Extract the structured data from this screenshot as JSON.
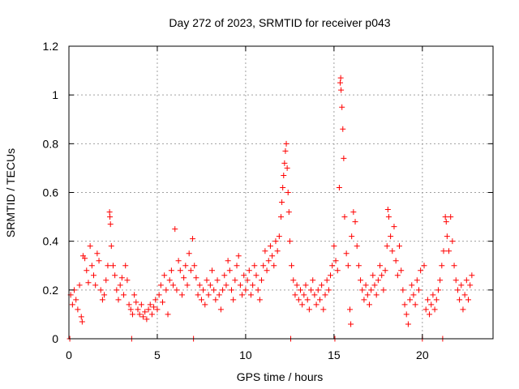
{
  "chart_data": {
    "type": "scatter",
    "title": "Day 272 of 2023, SRMTID for receiver p043",
    "xlabel": "GPS time / hours",
    "ylabel": "SRMTID / TECUs",
    "xlim": [
      0,
      24
    ],
    "ylim": [
      0,
      1.2
    ],
    "xticks": [
      0,
      5,
      10,
      15,
      20
    ],
    "xtick_labels": [
      "0",
      "5",
      "10",
      "15",
      "20"
    ],
    "yticks": [
      0,
      0.2,
      0.4,
      0.6,
      0.8,
      1,
      1.2
    ],
    "ytick_labels": [
      "0",
      "0.2",
      "0.4",
      "0.6",
      "0.8",
      "1",
      "1.2"
    ],
    "grid": true,
    "marker": "plus",
    "series": [
      {
        "name": "SRMTID",
        "color": "#ff0000",
        "points": [
          [
            0.05,
            0.0
          ],
          [
            0.1,
            0.18
          ],
          [
            0.2,
            0.14
          ],
          [
            0.3,
            0.2
          ],
          [
            0.4,
            0.16
          ],
          [
            0.5,
            0.12
          ],
          [
            0.6,
            0.22
          ],
          [
            0.7,
            0.09
          ],
          [
            0.75,
            0.07
          ],
          [
            0.8,
            0.34
          ],
          [
            0.9,
            0.33
          ],
          [
            1.0,
            0.28
          ],
          [
            1.1,
            0.23
          ],
          [
            1.2,
            0.38
          ],
          [
            1.3,
            0.3
          ],
          [
            1.4,
            0.26
          ],
          [
            1.5,
            0.22
          ],
          [
            1.6,
            0.35
          ],
          [
            1.7,
            0.32
          ],
          [
            1.8,
            0.2
          ],
          [
            1.9,
            0.16
          ],
          [
            2.0,
            0.18
          ],
          [
            2.1,
            0.24
          ],
          [
            2.2,
            0.3
          ],
          [
            2.3,
            0.52
          ],
          [
            2.32,
            0.5
          ],
          [
            2.35,
            0.47
          ],
          [
            2.4,
            0.38
          ],
          [
            2.5,
            0.3
          ],
          [
            2.6,
            0.26
          ],
          [
            2.7,
            0.2
          ],
          [
            2.8,
            0.16
          ],
          [
            2.9,
            0.22
          ],
          [
            3.0,
            0.25
          ],
          [
            3.1,
            0.18
          ],
          [
            3.2,
            0.3
          ],
          [
            3.3,
            0.24
          ],
          [
            3.4,
            0.14
          ],
          [
            3.5,
            0.12
          ],
          [
            3.55,
            0.0
          ],
          [
            3.6,
            0.1
          ],
          [
            3.7,
            0.18
          ],
          [
            3.8,
            0.15
          ],
          [
            3.9,
            0.12
          ],
          [
            4.0,
            0.1
          ],
          [
            4.1,
            0.14
          ],
          [
            4.2,
            0.09
          ],
          [
            4.3,
            0.11
          ],
          [
            4.4,
            0.08
          ],
          [
            4.5,
            0.12
          ],
          [
            4.6,
            0.14
          ],
          [
            4.7,
            0.1
          ],
          [
            4.8,
            0.13
          ],
          [
            4.9,
            0.16
          ],
          [
            5.0,
            0.12
          ],
          [
            5.1,
            0.18
          ],
          [
            5.2,
            0.22
          ],
          [
            5.3,
            0.15
          ],
          [
            5.4,
            0.26
          ],
          [
            5.5,
            0.2
          ],
          [
            5.6,
            0.1
          ],
          [
            5.7,
            0.24
          ],
          [
            5.8,
            0.28
          ],
          [
            5.9,
            0.22
          ],
          [
            6.0,
            0.45
          ],
          [
            6.1,
            0.2
          ],
          [
            6.2,
            0.32
          ],
          [
            6.3,
            0.28
          ],
          [
            6.4,
            0.18
          ],
          [
            6.5,
            0.25
          ],
          [
            6.6,
            0.3
          ],
          [
            6.7,
            0.22
          ],
          [
            6.8,
            0.35
          ],
          [
            6.9,
            0.28
          ],
          [
            7.0,
            0.41
          ],
          [
            7.05,
            0.0
          ],
          [
            7.1,
            0.3
          ],
          [
            7.2,
            0.25
          ],
          [
            7.3,
            0.18
          ],
          [
            7.4,
            0.22
          ],
          [
            7.5,
            0.16
          ],
          [
            7.6,
            0.2
          ],
          [
            7.7,
            0.14
          ],
          [
            7.8,
            0.24
          ],
          [
            7.9,
            0.18
          ],
          [
            8.0,
            0.22
          ],
          [
            8.1,
            0.28
          ],
          [
            8.2,
            0.2
          ],
          [
            8.3,
            0.16
          ],
          [
            8.4,
            0.24
          ],
          [
            8.5,
            0.18
          ],
          [
            8.6,
            0.12
          ],
          [
            8.7,
            0.2
          ],
          [
            8.8,
            0.26
          ],
          [
            8.9,
            0.22
          ],
          [
            9.0,
            0.32
          ],
          [
            9.1,
            0.28
          ],
          [
            9.2,
            0.2
          ],
          [
            9.3,
            0.16
          ],
          [
            9.4,
            0.24
          ],
          [
            9.5,
            0.3
          ],
          [
            9.6,
            0.34
          ],
          [
            9.7,
            0.22
          ],
          [
            9.8,
            0.18
          ],
          [
            9.9,
            0.26
          ],
          [
            10.0,
            0.2
          ],
          [
            10.1,
            0.24
          ],
          [
            10.2,
            0.28
          ],
          [
            10.3,
            0.18
          ],
          [
            10.4,
            0.22
          ],
          [
            10.5,
            0.3
          ],
          [
            10.6,
            0.26
          ],
          [
            10.7,
            0.2
          ],
          [
            10.8,
            0.16
          ],
          [
            10.9,
            0.24
          ],
          [
            11.0,
            0.3
          ],
          [
            11.1,
            0.36
          ],
          [
            11.2,
            0.28
          ],
          [
            11.3,
            0.32
          ],
          [
            11.4,
            0.38
          ],
          [
            11.5,
            0.34
          ],
          [
            11.6,
            0.3
          ],
          [
            11.7,
            0.4
          ],
          [
            11.8,
            0.36
          ],
          [
            11.9,
            0.42
          ],
          [
            12.0,
            0.5
          ],
          [
            12.05,
            0.56
          ],
          [
            12.1,
            0.62
          ],
          [
            12.15,
            0.67
          ],
          [
            12.2,
            0.72
          ],
          [
            12.25,
            0.77
          ],
          [
            12.3,
            0.8
          ],
          [
            12.35,
            0.7
          ],
          [
            12.4,
            0.6
          ],
          [
            12.45,
            0.52
          ],
          [
            12.5,
            0.4
          ],
          [
            12.55,
            0.0
          ],
          [
            12.6,
            0.3
          ],
          [
            12.7,
            0.24
          ],
          [
            12.8,
            0.18
          ],
          [
            12.9,
            0.22
          ],
          [
            13.0,
            0.16
          ],
          [
            13.1,
            0.2
          ],
          [
            13.2,
            0.14
          ],
          [
            13.3,
            0.18
          ],
          [
            13.4,
            0.22
          ],
          [
            13.5,
            0.16
          ],
          [
            13.6,
            0.12
          ],
          [
            13.7,
            0.2
          ],
          [
            13.8,
            0.24
          ],
          [
            13.9,
            0.18
          ],
          [
            14.0,
            0.14
          ],
          [
            14.1,
            0.2
          ],
          [
            14.2,
            0.16
          ],
          [
            14.3,
            0.22
          ],
          [
            14.4,
            0.12
          ],
          [
            14.5,
            0.18
          ],
          [
            14.6,
            0.24
          ],
          [
            14.7,
            0.2
          ],
          [
            14.8,
            0.26
          ],
          [
            14.9,
            0.3
          ],
          [
            15.0,
            0.38
          ],
          [
            15.05,
            0.0
          ],
          [
            15.1,
            0.32
          ],
          [
            15.2,
            0.28
          ],
          [
            15.3,
            0.62
          ],
          [
            15.35,
            1.05
          ],
          [
            15.38,
            1.07
          ],
          [
            15.4,
            1.02
          ],
          [
            15.45,
            0.95
          ],
          [
            15.5,
            0.86
          ],
          [
            15.55,
            0.74
          ],
          [
            15.6,
            0.5
          ],
          [
            15.7,
            0.35
          ],
          [
            15.8,
            0.3
          ],
          [
            15.9,
            0.12
          ],
          [
            15.95,
            0.06
          ],
          [
            16.0,
            0.42
          ],
          [
            16.1,
            0.52
          ],
          [
            16.2,
            0.48
          ],
          [
            16.3,
            0.38
          ],
          [
            16.4,
            0.3
          ],
          [
            16.5,
            0.24
          ],
          [
            16.6,
            0.2
          ],
          [
            16.7,
            0.16
          ],
          [
            16.8,
            0.22
          ],
          [
            16.9,
            0.18
          ],
          [
            17.0,
            0.14
          ],
          [
            17.1,
            0.2
          ],
          [
            17.2,
            0.26
          ],
          [
            17.3,
            0.22
          ],
          [
            17.4,
            0.18
          ],
          [
            17.5,
            0.24
          ],
          [
            17.6,
            0.3
          ],
          [
            17.7,
            0.26
          ],
          [
            17.8,
            0.2
          ],
          [
            17.9,
            0.28
          ],
          [
            18.0,
            0.38
          ],
          [
            18.05,
            0.53
          ],
          [
            18.1,
            0.5
          ],
          [
            18.2,
            0.42
          ],
          [
            18.3,
            0.36
          ],
          [
            18.4,
            0.46
          ],
          [
            18.5,
            0.32
          ],
          [
            18.6,
            0.26
          ],
          [
            18.7,
            0.38
          ],
          [
            18.8,
            0.28
          ],
          [
            18.9,
            0.2
          ],
          [
            19.0,
            0.14
          ],
          [
            19.1,
            0.1
          ],
          [
            19.2,
            0.06
          ],
          [
            19.3,
            0.16
          ],
          [
            19.4,
            0.22
          ],
          [
            19.5,
            0.18
          ],
          [
            19.6,
            0.14
          ],
          [
            19.7,
            0.24
          ],
          [
            19.8,
            0.2
          ],
          [
            19.9,
            0.28
          ],
          [
            20.0,
            0.0
          ],
          [
            20.1,
            0.3
          ],
          [
            20.2,
            0.12
          ],
          [
            20.3,
            0.16
          ],
          [
            20.4,
            0.1
          ],
          [
            20.5,
            0.14
          ],
          [
            20.6,
            0.18
          ],
          [
            20.7,
            0.12
          ],
          [
            20.8,
            0.16
          ],
          [
            20.9,
            0.2
          ],
          [
            21.0,
            0.24
          ],
          [
            21.1,
            0.3
          ],
          [
            21.15,
            0.0
          ],
          [
            21.2,
            0.36
          ],
          [
            21.3,
            0.5
          ],
          [
            21.35,
            0.48
          ],
          [
            21.4,
            0.42
          ],
          [
            21.5,
            0.36
          ],
          [
            21.6,
            0.5
          ],
          [
            21.7,
            0.4
          ],
          [
            21.8,
            0.3
          ],
          [
            21.9,
            0.24
          ],
          [
            22.0,
            0.2
          ],
          [
            22.1,
            0.16
          ],
          [
            22.2,
            0.22
          ],
          [
            22.3,
            0.12
          ],
          [
            22.4,
            0.18
          ],
          [
            22.5,
            0.24
          ],
          [
            22.6,
            0.16
          ],
          [
            22.7,
            0.22
          ],
          [
            22.8,
            0.26
          ]
        ]
      }
    ]
  }
}
